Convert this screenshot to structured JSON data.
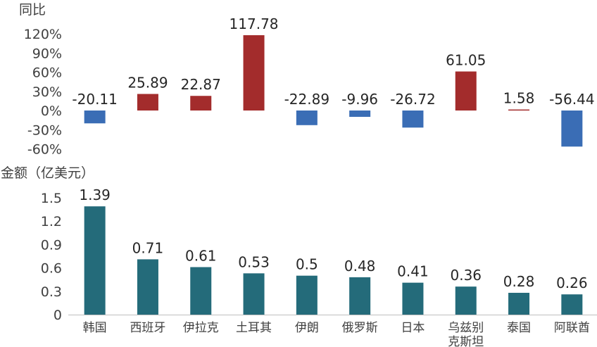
{
  "chart_data": [
    {
      "type": "bar",
      "ylabel": "同比",
      "categories": [
        "韩国",
        "西班牙",
        "伊拉克",
        "土耳其",
        "伊朗",
        "俄罗斯",
        "日本",
        "乌兹别克斯坦",
        "泰国",
        "阿联酋"
      ],
      "values": [
        -20.11,
        25.89,
        22.87,
        117.78,
        -22.89,
        -9.96,
        -26.72,
        61.05,
        1.58,
        -56.44
      ],
      "data_labels": [
        "-20.11",
        "25.89",
        "22.87",
        "117.78",
        "-22.89",
        "-9.96",
        "-26.72",
        "61.05",
        "1.58",
        "-56.44"
      ],
      "ylim": [
        -60,
        120
      ],
      "yticks": [
        "120%",
        "90%",
        "60%",
        "30%",
        "0%",
        "-30%",
        "-60%"
      ],
      "ytick_values": [
        120,
        90,
        60,
        30,
        0,
        -30,
        -60
      ],
      "colors": {
        "positive": "#a32c2c",
        "negative": "#3a6db5"
      },
      "grid": false
    },
    {
      "type": "bar",
      "ylabel": "金额（亿美元）",
      "categories": [
        "韩国",
        "西班牙",
        "伊拉克",
        "土耳其",
        "伊朗",
        "俄罗斯",
        "日本",
        "乌兹别克斯坦",
        "泰国",
        "阿联酋"
      ],
      "category_lines": [
        [
          "韩国"
        ],
        [
          "西班牙"
        ],
        [
          "伊拉克"
        ],
        [
          "土耳其"
        ],
        [
          "伊朗"
        ],
        [
          "俄罗斯"
        ],
        [
          "日本"
        ],
        [
          "乌兹别",
          "克斯坦"
        ],
        [
          "泰国"
        ],
        [
          "阿联酋"
        ]
      ],
      "values": [
        1.39,
        0.71,
        0.61,
        0.53,
        0.5,
        0.48,
        0.41,
        0.36,
        0.28,
        0.26
      ],
      "data_labels": [
        "1.39",
        "0.71",
        "0.61",
        "0.53",
        "0.5",
        "0.48",
        "0.41",
        "0.36",
        "0.28",
        "0.26"
      ],
      "ylim": [
        0,
        1.5
      ],
      "yticks": [
        "1.5",
        "1.2",
        "0.9",
        "0.6",
        "0.3",
        "0"
      ],
      "ytick_values": [
        1.5,
        1.2,
        0.9,
        0.6,
        0.3,
        0
      ],
      "colors": {
        "bar": "#246b7a",
        "axis": "#bfbfbf"
      },
      "grid": false
    }
  ]
}
